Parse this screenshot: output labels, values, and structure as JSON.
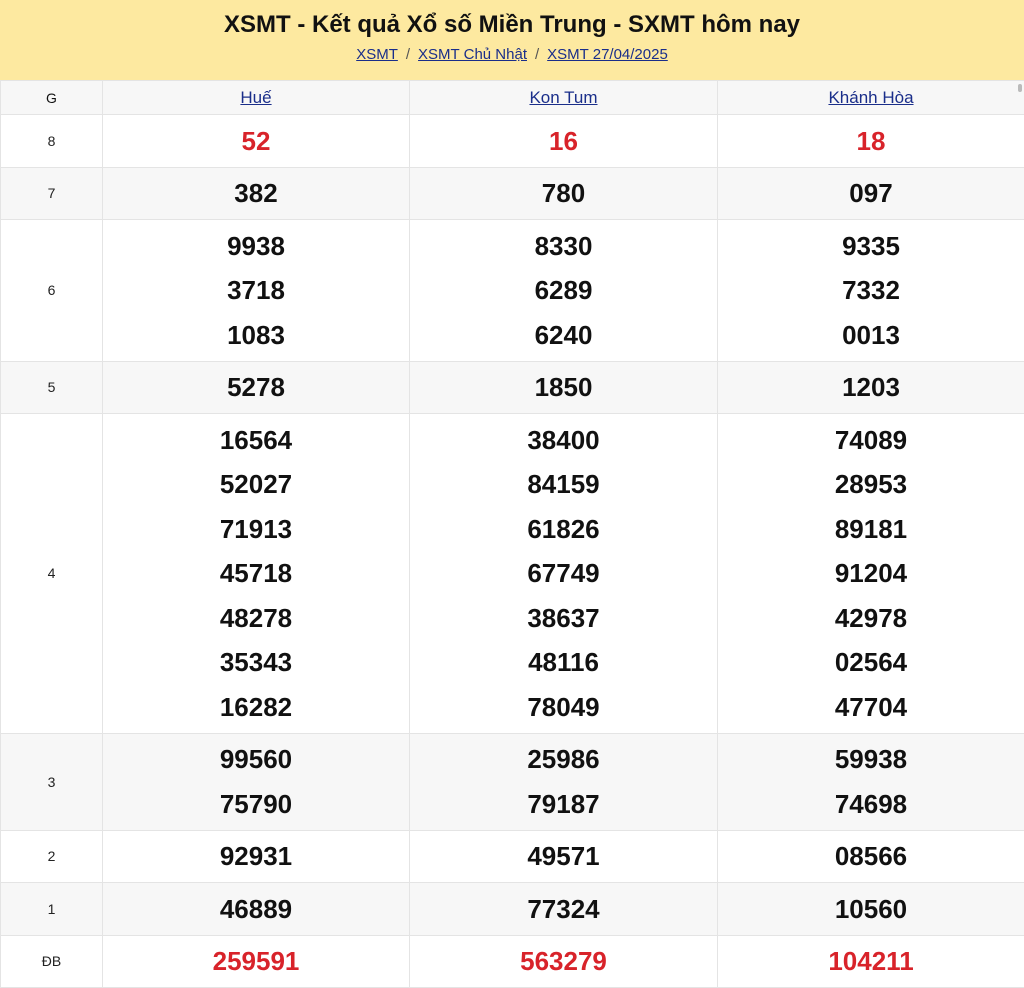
{
  "header": {
    "title": "XSMT - Kết quả Xổ số Miền Trung - SXMT hôm nay",
    "breadcrumb": [
      "XSMT",
      "XSMT Chủ Nhật",
      "XSMT 27/04/2025"
    ]
  },
  "table": {
    "columns": [
      "G",
      "Huế",
      "Kon Tum",
      "Khánh Hòa"
    ],
    "rows": [
      {
        "prize": "8",
        "values": [
          [
            "52"
          ],
          [
            "16"
          ],
          [
            "18"
          ]
        ]
      },
      {
        "prize": "7",
        "values": [
          [
            "382"
          ],
          [
            "780"
          ],
          [
            "097"
          ]
        ]
      },
      {
        "prize": "6",
        "values": [
          [
            "9938",
            "3718",
            "1083"
          ],
          [
            "8330",
            "6289",
            "6240"
          ],
          [
            "9335",
            "7332",
            "0013"
          ]
        ]
      },
      {
        "prize": "5",
        "values": [
          [
            "5278"
          ],
          [
            "1850"
          ],
          [
            "1203"
          ]
        ]
      },
      {
        "prize": "4",
        "values": [
          [
            "16564",
            "52027",
            "71913",
            "45718",
            "48278",
            "35343",
            "16282"
          ],
          [
            "38400",
            "84159",
            "61826",
            "67749",
            "38637",
            "48116",
            "78049"
          ],
          [
            "74089",
            "28953",
            "89181",
            "91204",
            "42978",
            "02564",
            "47704"
          ]
        ]
      },
      {
        "prize": "3",
        "values": [
          [
            "99560",
            "75790"
          ],
          [
            "25986",
            "79187"
          ],
          [
            "59938",
            "74698"
          ]
        ]
      },
      {
        "prize": "2",
        "values": [
          [
            "92931"
          ],
          [
            "49571"
          ],
          [
            "08566"
          ]
        ]
      },
      {
        "prize": "1",
        "values": [
          [
            "46889"
          ],
          [
            "77324"
          ],
          [
            "10560"
          ]
        ]
      },
      {
        "prize": "ĐB",
        "values": [
          [
            "259591"
          ],
          [
            "563279"
          ],
          [
            "104211"
          ]
        ]
      }
    ]
  },
  "colors": {
    "header_bg": "#fde9a0",
    "highlight": "#d8232a",
    "link": "#1a2e8a"
  }
}
